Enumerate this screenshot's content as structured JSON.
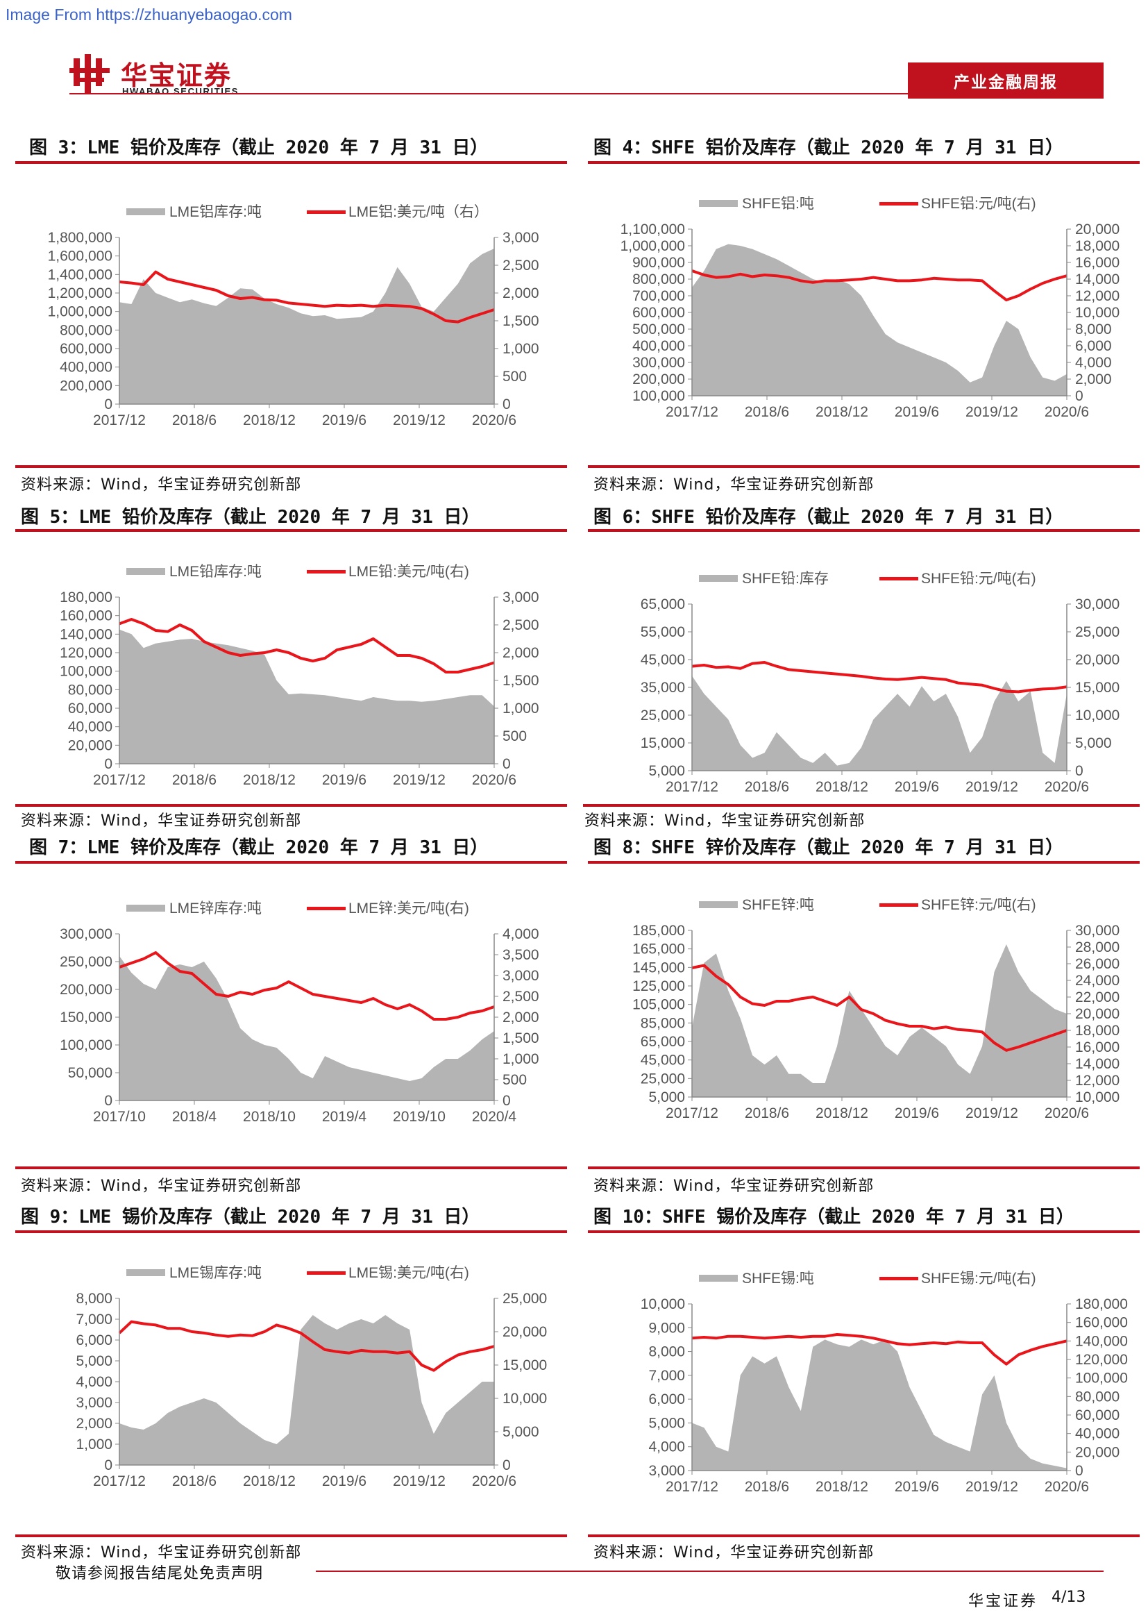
{
  "watermark": "Image From https://zhuanyebaogao.com",
  "header": {
    "logo_cn": "华宝证券",
    "logo_en": "HWABAO SECURITIES",
    "report_type": "产业金融周报"
  },
  "colors": {
    "brand_red": "#c0121e",
    "inventory_gray": "#b4b4b4",
    "price_red": "#e8151b"
  },
  "figures": [
    {
      "title": "图 3：LME 铝价及库存（截止 2020 年 7 月 31 日）",
      "source": "资料来源：Wind，华宝证券研究创新部"
    },
    {
      "title": "图 4：SHFE 铝价及库存（截止 2020 年 7 月 31 日）",
      "source": "资料来源：Wind，华宝证券研究创新部"
    },
    {
      "title": "图 5：LME 铅价及库存（截止 2020 年 7 月 31 日）",
      "source": "资料来源：Wind，华宝证券研究创新部"
    },
    {
      "title": "图 6：SHFE 铅价及库存（截止 2020 年 7 月 31 日）",
      "source": "资料来源：Wind，华宝证券研究创新部"
    },
    {
      "title": "图 7：LME 锌价及库存（截止 2020 年 7 月 31 日）",
      "source": "资料来源：Wind，华宝证券研究创新部"
    },
    {
      "title": "图 8：SHFE 锌价及库存（截止 2020 年 7 月 31 日）",
      "source": "资料来源：Wind，华宝证券研究创新部"
    },
    {
      "title": "图 9：LME 锡价及库存（截止 2020 年 7 月 31 日）",
      "source": "资料来源：Wind，华宝证券研究创新部"
    },
    {
      "title": "图 10：SHFE 锡价及库存（截止 2020 年 7 月 31 日）",
      "source": "资料来源：Wind，华宝证券研究创新部"
    }
  ],
  "chart_data": [
    {
      "type": "area+line",
      "legend": [
        "LME铝库存:吨",
        "LME铝:美元/吨（右）"
      ],
      "x_ticks": [
        "2017/12",
        "2018/6",
        "2018/12",
        "2019/6",
        "2019/12",
        "2020/6"
      ],
      "left_ticks": [
        "0",
        "200,000",
        "400,000",
        "600,000",
        "800,000",
        "1,000,000",
        "1,200,000",
        "1,400,000",
        "1,600,000",
        "1,800,000"
      ],
      "right_ticks": [
        "0",
        "500",
        "1,000",
        "1,500",
        "2,000",
        "2,500",
        "3,000"
      ],
      "left_range": [
        0,
        1800000
      ],
      "right_range": [
        0,
        3000
      ],
      "inventory": [
        1100000,
        1080000,
        1350000,
        1200000,
        1150000,
        1100000,
        1130000,
        1090000,
        1060000,
        1150000,
        1250000,
        1240000,
        1140000,
        1080000,
        1040000,
        980000,
        950000,
        960000,
        920000,
        930000,
        940000,
        1000000,
        1200000,
        1480000,
        1300000,
        1050000,
        1000000,
        1150000,
        1300000,
        1520000,
        1620000,
        1680000
      ],
      "price": [
        2200,
        2180,
        2150,
        2380,
        2250,
        2200,
        2150,
        2100,
        2050,
        1950,
        1900,
        1920,
        1880,
        1870,
        1820,
        1800,
        1780,
        1760,
        1780,
        1770,
        1780,
        1760,
        1780,
        1770,
        1760,
        1720,
        1620,
        1500,
        1480,
        1560,
        1630,
        1700
      ]
    },
    {
      "type": "area+line",
      "legend": [
        "SHFE铝:吨",
        "SHFE铝:元/吨(右)"
      ],
      "x_ticks": [
        "2017/12",
        "2018/6",
        "2018/12",
        "2019/6",
        "2019/12",
        "2020/6"
      ],
      "left_ticks": [
        "100,000",
        "200,000",
        "300,000",
        "400,000",
        "500,000",
        "600,000",
        "700,000",
        "800,000",
        "900,000",
        "1,000,000",
        "1,100,000"
      ],
      "right_ticks": [
        "0",
        "2,000",
        "4,000",
        "6,000",
        "8,000",
        "10,000",
        "12,000",
        "14,000",
        "16,000",
        "18,000",
        "20,000"
      ],
      "left_range": [
        100000,
        1100000
      ],
      "right_range": [
        0,
        20000
      ],
      "inventory": [
        750000,
        850000,
        980000,
        1010000,
        1000000,
        980000,
        950000,
        920000,
        880000,
        840000,
        800000,
        780000,
        800000,
        770000,
        700000,
        580000,
        470000,
        420000,
        390000,
        360000,
        330000,
        300000,
        250000,
        180000,
        210000,
        400000,
        550000,
        500000,
        330000,
        210000,
        190000,
        230000
      ],
      "price": [
        15000,
        14500,
        14200,
        14300,
        14600,
        14300,
        14500,
        14400,
        14200,
        13800,
        13600,
        13800,
        13800,
        13900,
        14000,
        14200,
        14000,
        13800,
        13800,
        13900,
        14100,
        14000,
        13900,
        13900,
        13800,
        12600,
        11500,
        12000,
        12800,
        13500,
        14000,
        14400
      ]
    },
    {
      "type": "area+line",
      "legend": [
        "LME铅库存:吨",
        "LME铅:美元/吨(右)"
      ],
      "x_ticks": [
        "2017/12",
        "2018/6",
        "2018/12",
        "2019/6",
        "2019/12",
        "2020/6"
      ],
      "left_ticks": [
        "0",
        "20,000",
        "40,000",
        "60,000",
        "80,000",
        "100,000",
        "120,000",
        "140,000",
        "160,000",
        "180,000"
      ],
      "right_ticks": [
        "0",
        "500",
        "1,000",
        "1,500",
        "2,000",
        "2,500",
        "3,000"
      ],
      "left_range": [
        0,
        180000
      ],
      "right_range": [
        0,
        3000
      ],
      "inventory": [
        145000,
        140000,
        125000,
        130000,
        132000,
        134000,
        135000,
        132000,
        130000,
        128000,
        125000,
        122000,
        118000,
        90000,
        75000,
        76000,
        75000,
        74000,
        72000,
        70000,
        68000,
        72000,
        70000,
        68000,
        68000,
        67000,
        68000,
        70000,
        72000,
        74000,
        74000,
        62000
      ],
      "price": [
        2520,
        2600,
        2520,
        2400,
        2380,
        2500,
        2400,
        2200,
        2100,
        2000,
        1950,
        1980,
        2000,
        2050,
        2000,
        1900,
        1850,
        1900,
        2050,
        2100,
        2150,
        2250,
        2100,
        1950,
        1950,
        1900,
        1800,
        1650,
        1650,
        1700,
        1750,
        1820
      ]
    },
    {
      "type": "area+line",
      "legend": [
        "SHFE铅:库存",
        "SHFE铅:元/吨(右)"
      ],
      "x_ticks": [
        "2017/12",
        "2018/6",
        "2018/12",
        "2019/6",
        "2019/12",
        "2020/6"
      ],
      "left_ticks": [
        "5,000",
        "15,000",
        "25,000",
        "35,000",
        "45,000",
        "55,000",
        "65,000"
      ],
      "right_ticks": [
        "0",
        "5,000",
        "10,000",
        "15,000",
        "20,000",
        "25,000",
        "30,000"
      ],
      "left_range": [
        5000,
        70000
      ],
      "right_range": [
        0,
        30000
      ],
      "inventory": [
        42000,
        35000,
        30000,
        25000,
        15000,
        10000,
        12000,
        20000,
        15000,
        10000,
        8000,
        12000,
        7000,
        8000,
        14000,
        25000,
        30000,
        35000,
        30000,
        38000,
        32000,
        35000,
        26000,
        12000,
        18000,
        32000,
        40000,
        32000,
        36000,
        12000,
        8000,
        35000
      ],
      "price": [
        18800,
        19000,
        18600,
        18700,
        18400,
        19300,
        19500,
        18800,
        18200,
        18000,
        17800,
        17600,
        17400,
        17200,
        17000,
        16700,
        16500,
        16400,
        16600,
        16800,
        16600,
        16400,
        15800,
        15600,
        15400,
        14800,
        14300,
        14200,
        14500,
        14700,
        14800,
        15100
      ]
    },
    {
      "type": "area+line",
      "legend": [
        "LME锌库存:吨",
        "LME锌:美元/吨(右)"
      ],
      "x_ticks": [
        "2017/10",
        "2018/4",
        "2018/10",
        "2019/4",
        "2019/10",
        "2020/4"
      ],
      "left_ticks": [
        "0",
        "50,000",
        "100,000",
        "150,000",
        "200,000",
        "250,000",
        "300,000"
      ],
      "right_ticks": [
        "0",
        "500",
        "1,000",
        "1,500",
        "2,000",
        "2,500",
        "3,000",
        "3,500",
        "4,000"
      ],
      "left_range": [
        0,
        300000
      ],
      "right_range": [
        0,
        4000
      ],
      "inventory": [
        260000,
        230000,
        210000,
        200000,
        240000,
        245000,
        240000,
        250000,
        220000,
        180000,
        130000,
        110000,
        100000,
        95000,
        75000,
        50000,
        40000,
        80000,
        70000,
        60000,
        55000,
        50000,
        45000,
        40000,
        35000,
        40000,
        60000,
        75000,
        75000,
        90000,
        110000,
        125000
      ],
      "price": [
        3200,
        3300,
        3400,
        3550,
        3300,
        3100,
        3050,
        2800,
        2550,
        2500,
        2600,
        2550,
        2650,
        2700,
        2850,
        2700,
        2550,
        2500,
        2450,
        2400,
        2350,
        2450,
        2300,
        2200,
        2300,
        2150,
        1950,
        1950,
        2000,
        2100,
        2150,
        2250
      ]
    },
    {
      "type": "area+line",
      "legend": [
        "SHFE锌:吨",
        "SHFE锌:元/吨(右)"
      ],
      "x_ticks": [
        "2017/12",
        "2018/6",
        "2018/12",
        "2019/6",
        "2019/12",
        "2020/6"
      ],
      "left_ticks": [
        "5,000",
        "25,000",
        "45,000",
        "65,000",
        "85,000",
        "105,000",
        "125,000",
        "145,000",
        "165,000",
        "185,000"
      ],
      "right_ticks": [
        "10,000",
        "12,000",
        "14,000",
        "16,000",
        "18,000",
        "20,000",
        "22,000",
        "24,000",
        "26,000",
        "28,000",
        "30,000"
      ],
      "left_range": [
        5000,
        185000
      ],
      "right_range": [
        10000,
        30000
      ],
      "inventory": [
        80000,
        150000,
        160000,
        120000,
        90000,
        50000,
        40000,
        50000,
        30000,
        30000,
        20000,
        20000,
        60000,
        120000,
        100000,
        80000,
        60000,
        50000,
        70000,
        80000,
        70000,
        60000,
        40000,
        30000,
        60000,
        140000,
        170000,
        140000,
        120000,
        110000,
        100000,
        95000
      ],
      "price": [
        25500,
        25800,
        24500,
        23500,
        22000,
        21200,
        21000,
        21500,
        21500,
        21800,
        22000,
        21500,
        21000,
        22000,
        20500,
        20000,
        19200,
        18800,
        18500,
        18500,
        18200,
        18400,
        18100,
        18000,
        17800,
        16500,
        15600,
        16000,
        16500,
        17000,
        17500,
        18000
      ]
    },
    {
      "type": "area+line",
      "legend": [
        "LME锡库存:吨",
        "LME锡:美元/吨(右)"
      ],
      "x_ticks": [
        "2017/12",
        "2018/6",
        "2018/12",
        "2019/6",
        "2019/12",
        "2020/6"
      ],
      "left_ticks": [
        "0",
        "1,000",
        "2,000",
        "3,000",
        "4,000",
        "5,000",
        "6,000",
        "7,000",
        "8,000"
      ],
      "right_ticks": [
        "0",
        "5,000",
        "10,000",
        "15,000",
        "20,000",
        "25,000"
      ],
      "left_range": [
        0,
        8000
      ],
      "right_range": [
        0,
        25000
      ],
      "inventory": [
        2000,
        1800,
        1700,
        2000,
        2500,
        2800,
        3000,
        3200,
        3000,
        2500,
        2000,
        1600,
        1200,
        1000,
        1500,
        6500,
        7200,
        6800,
        6500,
        6800,
        7000,
        6800,
        7200,
        6800,
        6500,
        3000,
        1500,
        2500,
        3000,
        3500,
        4000,
        4000
      ],
      "price": [
        19800,
        21500,
        21200,
        21000,
        20500,
        20500,
        20000,
        19800,
        19500,
        19300,
        19500,
        19400,
        20000,
        21000,
        20500,
        19800,
        18500,
        17300,
        17000,
        16800,
        17200,
        17000,
        17000,
        16800,
        17000,
        15000,
        14200,
        15500,
        16500,
        17000,
        17300,
        17800
      ]
    },
    {
      "type": "area+line",
      "legend": [
        "SHFE锡:吨",
        "SHFE锡:元/吨(右)"
      ],
      "x_ticks": [
        "2017/12",
        "2018/6",
        "2018/12",
        "2019/6",
        "2019/12",
        "2020/6"
      ],
      "left_ticks": [
        "3,000",
        "4,000",
        "5,000",
        "6,000",
        "7,000",
        "8,000",
        "9,000",
        "10,000"
      ],
      "right_ticks": [
        "0",
        "20,000",
        "40,000",
        "60,000",
        "80,000",
        "100,000",
        "120,000",
        "140,000",
        "160,000",
        "180,000"
      ],
      "left_range": [
        3000,
        10000
      ],
      "right_range": [
        0,
        180000
      ],
      "inventory": [
        5000,
        4800,
        4000,
        3800,
        7000,
        7800,
        7500,
        7800,
        6500,
        5500,
        8200,
        8500,
        8300,
        8200,
        8500,
        8300,
        8500,
        8000,
        6500,
        5500,
        4500,
        4200,
        4000,
        3800,
        6200,
        7000,
        5000,
        4000,
        3500,
        3300,
        3200,
        3100
      ],
      "price": [
        143000,
        144000,
        143000,
        145000,
        145000,
        144000,
        143000,
        144000,
        145000,
        144000,
        145000,
        145000,
        147000,
        146000,
        145000,
        143000,
        140000,
        137000,
        136000,
        137000,
        138000,
        137000,
        139000,
        138000,
        138000,
        125000,
        115000,
        125000,
        130000,
        134000,
        137000,
        140000
      ]
    }
  ]
}
